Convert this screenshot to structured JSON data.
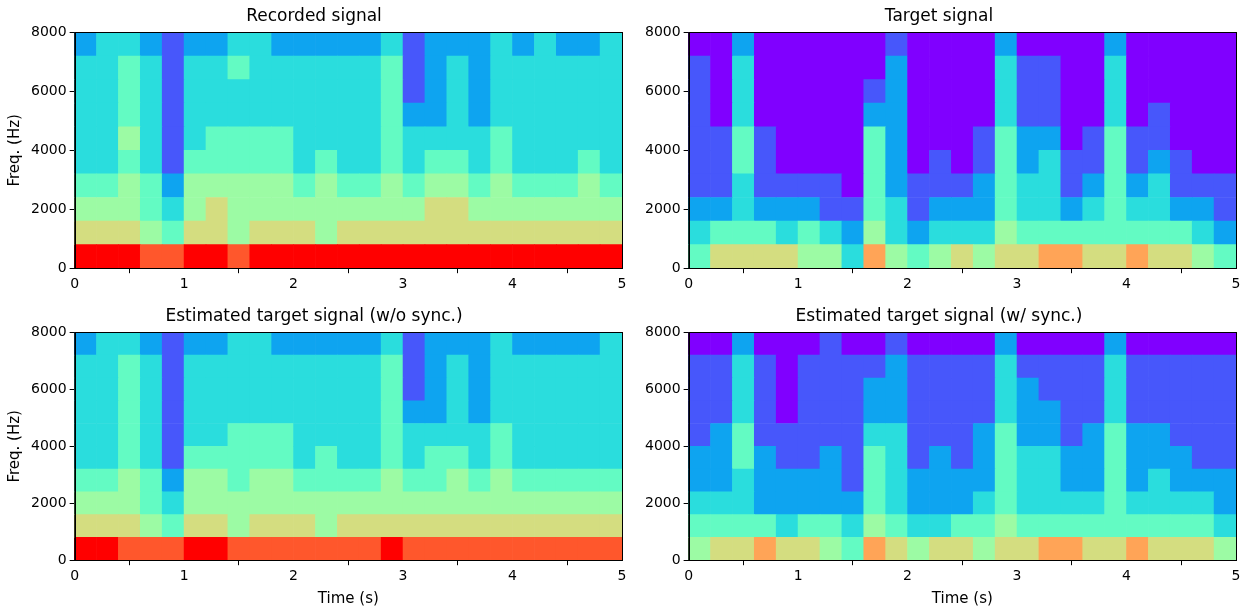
{
  "chart_data": [
    {
      "type": "heatmap",
      "title": "Recorded signal",
      "y_label": "Freq. (Hz)",
      "xlim": [
        0,
        5
      ],
      "xticks": [
        0,
        1,
        2,
        3,
        4,
        5
      ],
      "ylim": [
        0,
        8000
      ],
      "yticks": [
        0,
        2000,
        4000,
        6000,
        8000
      ],
      "grid": false,
      "color": "rainbow",
      "clim": [
        0,
        9
      ],
      "time_bins": [
        0,
        0.2,
        0.4,
        0.6,
        0.8,
        1.0,
        1.2,
        1.4,
        1.6,
        1.8,
        2.0,
        2.2,
        2.4,
        2.6,
        2.8,
        3.0,
        3.2,
        3.4,
        3.6,
        3.8,
        4.0,
        4.2,
        4.4,
        4.6,
        4.8,
        5.0
      ],
      "freq_bins": [
        0,
        800,
        1600,
        2400,
        3200,
        4000,
        4800,
        5600,
        6400,
        7200,
        8000
      ],
      "cells": [
        [
          9,
          9,
          9,
          8,
          8,
          9,
          9,
          8,
          9,
          9,
          9,
          9,
          9,
          9,
          9,
          9,
          9,
          9,
          9,
          9,
          9,
          9,
          9,
          9,
          9
        ],
        [
          6,
          6,
          6,
          5,
          4,
          6,
          6,
          5,
          6,
          6,
          6,
          5,
          6,
          6,
          6,
          6,
          6,
          6,
          6,
          6,
          6,
          6,
          6,
          6,
          6
        ],
        [
          5,
          5,
          5,
          4,
          3,
          5,
          6,
          5,
          5,
          5,
          5,
          5,
          5,
          5,
          5,
          5,
          6,
          6,
          5,
          5,
          5,
          5,
          5,
          5,
          5
        ],
        [
          4,
          4,
          5,
          4,
          2,
          5,
          5,
          5,
          5,
          5,
          4,
          5,
          4,
          4,
          5,
          4,
          5,
          5,
          4,
          5,
          4,
          4,
          4,
          5,
          4
        ],
        [
          3,
          3,
          4,
          3,
          1,
          4,
          4,
          4,
          4,
          4,
          3,
          4,
          3,
          3,
          4,
          3,
          4,
          4,
          3,
          4,
          3,
          3,
          3,
          4,
          3
        ],
        [
          3,
          3,
          5,
          3,
          1,
          3,
          4,
          4,
          4,
          4,
          3,
          3,
          3,
          3,
          4,
          3,
          3,
          3,
          3,
          4,
          3,
          3,
          3,
          3,
          3
        ],
        [
          3,
          3,
          4,
          3,
          1,
          3,
          3,
          3,
          3,
          3,
          3,
          3,
          3,
          3,
          4,
          2,
          2,
          3,
          2,
          3,
          3,
          3,
          3,
          3,
          3
        ],
        [
          3,
          3,
          4,
          3,
          1,
          3,
          3,
          3,
          3,
          3,
          3,
          3,
          3,
          3,
          4,
          1,
          2,
          3,
          2,
          3,
          3,
          3,
          3,
          3,
          3
        ],
        [
          3,
          3,
          4,
          3,
          1,
          3,
          3,
          4,
          3,
          3,
          3,
          3,
          3,
          3,
          4,
          1,
          2,
          3,
          2,
          3,
          3,
          3,
          3,
          3,
          3
        ],
        [
          2,
          3,
          3,
          2,
          1,
          2,
          2,
          3,
          3,
          2,
          2,
          2,
          2,
          2,
          3,
          1,
          2,
          2,
          2,
          3,
          2,
          3,
          2,
          2,
          3
        ]
      ]
    },
    {
      "type": "heatmap",
      "title": "Target signal",
      "xlim": [
        0,
        5
      ],
      "xticks": [
        0,
        1,
        2,
        3,
        4,
        5
      ],
      "ylim": [
        0,
        8000
      ],
      "yticks": [
        0,
        2000,
        4000,
        6000,
        8000
      ],
      "grid": false,
      "color": "rainbow",
      "clim": [
        0,
        9
      ],
      "time_bins": [
        0,
        0.2,
        0.4,
        0.6,
        0.8,
        1.0,
        1.2,
        1.4,
        1.6,
        1.8,
        2.0,
        2.2,
        2.4,
        2.6,
        2.8,
        3.0,
        3.2,
        3.4,
        3.6,
        3.8,
        4.0,
        4.2,
        4.4,
        4.6,
        4.8,
        5.0
      ],
      "freq_bins": [
        0,
        800,
        1600,
        2400,
        3200,
        4000,
        4800,
        5600,
        6400,
        7200,
        8000
      ],
      "cells": [
        [
          4,
          6,
          6,
          6,
          6,
          5,
          5,
          3,
          7,
          5,
          4,
          5,
          6,
          5,
          6,
          6,
          7,
          7,
          6,
          6,
          7,
          6,
          6,
          5,
          4
        ],
        [
          3,
          4,
          4,
          4,
          3,
          4,
          3,
          2,
          5,
          3,
          2,
          3,
          3,
          3,
          5,
          4,
          4,
          4,
          4,
          4,
          4,
          4,
          4,
          3,
          2
        ],
        [
          2,
          2,
          3,
          2,
          2,
          2,
          1,
          1,
          4,
          3,
          1,
          2,
          2,
          2,
          4,
          3,
          3,
          2,
          3,
          4,
          3,
          3,
          2,
          2,
          1
        ],
        [
          1,
          1,
          3,
          1,
          1,
          1,
          1,
          0,
          4,
          2,
          1,
          1,
          1,
          2,
          4,
          3,
          3,
          1,
          2,
          4,
          2,
          3,
          1,
          1,
          1
        ],
        [
          1,
          1,
          4,
          1,
          0,
          0,
          0,
          0,
          4,
          2,
          0,
          1,
          0,
          1,
          4,
          2,
          3,
          1,
          1,
          4,
          1,
          2,
          1,
          0,
          0
        ],
        [
          1,
          1,
          4,
          1,
          0,
          0,
          0,
          0,
          4,
          2,
          0,
          0,
          0,
          1,
          4,
          2,
          2,
          0,
          1,
          4,
          1,
          1,
          0,
          0,
          0
        ],
        [
          1,
          0,
          3,
          0,
          0,
          0,
          0,
          0,
          2,
          2,
          0,
          0,
          0,
          0,
          3,
          1,
          1,
          0,
          0,
          3,
          0,
          1,
          0,
          0,
          0
        ],
        [
          1,
          0,
          3,
          0,
          0,
          0,
          0,
          0,
          1,
          2,
          0,
          0,
          0,
          0,
          3,
          1,
          1,
          0,
          0,
          3,
          0,
          0,
          0,
          0,
          0
        ],
        [
          1,
          0,
          3,
          0,
          0,
          0,
          0,
          0,
          0,
          2,
          0,
          0,
          0,
          0,
          3,
          1,
          1,
          0,
          0,
          3,
          0,
          0,
          0,
          0,
          0
        ],
        [
          0,
          0,
          2,
          0,
          0,
          0,
          0,
          0,
          0,
          1,
          0,
          0,
          0,
          0,
          2,
          0,
          0,
          0,
          0,
          2,
          0,
          0,
          0,
          0,
          0
        ]
      ]
    },
    {
      "type": "heatmap",
      "title": "Estimated target signal (w/o sync.)",
      "x_label": "Time (s)",
      "y_label": "Freq. (Hz)",
      "xlim": [
        0,
        5
      ],
      "xticks": [
        0,
        1,
        2,
        3,
        4,
        5
      ],
      "ylim": [
        0,
        8000
      ],
      "yticks": [
        0,
        2000,
        4000,
        6000,
        8000
      ],
      "grid": false,
      "color": "rainbow",
      "clim": [
        0,
        9
      ],
      "time_bins": [
        0,
        0.2,
        0.4,
        0.6,
        0.8,
        1.0,
        1.2,
        1.4,
        1.6,
        1.8,
        2.0,
        2.2,
        2.4,
        2.6,
        2.8,
        3.0,
        3.2,
        3.4,
        3.6,
        3.8,
        4.0,
        4.2,
        4.4,
        4.6,
        4.8,
        5.0
      ],
      "freq_bins": [
        0,
        800,
        1600,
        2400,
        3200,
        4000,
        4800,
        5600,
        6400,
        7200,
        8000
      ],
      "cells": [
        [
          9,
          9,
          8,
          8,
          8,
          9,
          9,
          8,
          8,
          8,
          8,
          8,
          8,
          8,
          9,
          8,
          8,
          8,
          8,
          8,
          8,
          8,
          8,
          8,
          8
        ],
        [
          6,
          6,
          6,
          5,
          4,
          6,
          6,
          5,
          6,
          6,
          6,
          5,
          6,
          6,
          6,
          6,
          6,
          6,
          6,
          6,
          6,
          6,
          6,
          6,
          6
        ],
        [
          5,
          5,
          5,
          4,
          3,
          5,
          5,
          5,
          5,
          5,
          5,
          5,
          5,
          5,
          5,
          5,
          5,
          5,
          5,
          5,
          5,
          5,
          5,
          5,
          5
        ],
        [
          4,
          4,
          5,
          4,
          2,
          5,
          5,
          4,
          5,
          5,
          4,
          4,
          4,
          4,
          5,
          4,
          4,
          5,
          4,
          5,
          4,
          4,
          4,
          4,
          4
        ],
        [
          3,
          3,
          4,
          3,
          1,
          4,
          4,
          4,
          4,
          4,
          3,
          4,
          3,
          3,
          4,
          3,
          4,
          4,
          3,
          4,
          3,
          3,
          3,
          3,
          3
        ],
        [
          3,
          3,
          4,
          3,
          1,
          3,
          3,
          4,
          4,
          4,
          3,
          3,
          3,
          3,
          4,
          3,
          3,
          3,
          3,
          4,
          3,
          3,
          3,
          3,
          3
        ],
        [
          3,
          3,
          4,
          3,
          1,
          3,
          3,
          3,
          3,
          3,
          3,
          3,
          3,
          3,
          4,
          2,
          2,
          3,
          2,
          3,
          3,
          3,
          3,
          3,
          3
        ],
        [
          3,
          3,
          4,
          3,
          1,
          3,
          3,
          3,
          3,
          3,
          3,
          3,
          3,
          3,
          4,
          1,
          2,
          3,
          2,
          3,
          3,
          3,
          3,
          3,
          3
        ],
        [
          3,
          3,
          4,
          3,
          1,
          3,
          3,
          3,
          3,
          3,
          3,
          3,
          3,
          3,
          4,
          1,
          2,
          3,
          2,
          3,
          3,
          3,
          3,
          3,
          3
        ],
        [
          2,
          3,
          3,
          2,
          1,
          2,
          2,
          3,
          3,
          2,
          2,
          2,
          2,
          2,
          3,
          1,
          2,
          2,
          2,
          3,
          2,
          2,
          2,
          2,
          3
        ]
      ]
    },
    {
      "type": "heatmap",
      "title": "Estimated target signal (w/ sync.)",
      "x_label": "Time (s)",
      "xlim": [
        0,
        5
      ],
      "xticks": [
        0,
        1,
        2,
        3,
        4,
        5
      ],
      "ylim": [
        0,
        8000
      ],
      "yticks": [
        0,
        2000,
        4000,
        6000,
        8000
      ],
      "grid": false,
      "color": "rainbow",
      "clim": [
        0,
        9
      ],
      "time_bins": [
        0,
        0.2,
        0.4,
        0.6,
        0.8,
        1.0,
        1.2,
        1.4,
        1.6,
        1.8,
        2.0,
        2.2,
        2.4,
        2.6,
        2.8,
        3.0,
        3.2,
        3.4,
        3.6,
        3.8,
        4.0,
        4.2,
        4.4,
        4.6,
        4.8,
        5.0
      ],
      "freq_bins": [
        0,
        800,
        1600,
        2400,
        3200,
        4000,
        4800,
        5600,
        6400,
        7200,
        8000
      ],
      "cells": [
        [
          5,
          6,
          6,
          7,
          6,
          6,
          5,
          4,
          7,
          6,
          5,
          6,
          6,
          5,
          6,
          6,
          7,
          7,
          6,
          6,
          7,
          6,
          6,
          6,
          5
        ],
        [
          4,
          4,
          4,
          4,
          3,
          4,
          4,
          3,
          5,
          4,
          3,
          3,
          4,
          4,
          5,
          4,
          4,
          4,
          4,
          4,
          4,
          4,
          4,
          4,
          3
        ],
        [
          3,
          3,
          3,
          2,
          2,
          2,
          2,
          2,
          4,
          3,
          2,
          2,
          2,
          3,
          4,
          3,
          3,
          3,
          3,
          4,
          3,
          3,
          3,
          3,
          2
        ],
        [
          2,
          2,
          3,
          2,
          2,
          2,
          2,
          1,
          4,
          3,
          2,
          2,
          2,
          2,
          4,
          3,
          3,
          2,
          2,
          4,
          2,
          3,
          2,
          2,
          2
        ],
        [
          2,
          2,
          4,
          2,
          1,
          1,
          2,
          1,
          4,
          3,
          1,
          2,
          1,
          2,
          4,
          3,
          3,
          2,
          2,
          4,
          2,
          2,
          2,
          1,
          1
        ],
        [
          1,
          2,
          4,
          1,
          1,
          1,
          1,
          1,
          3,
          3,
          1,
          1,
          1,
          2,
          4,
          2,
          2,
          1,
          2,
          4,
          2,
          2,
          1,
          1,
          1
        ],
        [
          1,
          1,
          3,
          1,
          0,
          1,
          1,
          1,
          2,
          2,
          1,
          1,
          1,
          1,
          3,
          2,
          2,
          1,
          1,
          3,
          1,
          1,
          1,
          1,
          1
        ],
        [
          1,
          1,
          3,
          1,
          0,
          1,
          1,
          1,
          2,
          2,
          1,
          1,
          1,
          1,
          3,
          2,
          1,
          1,
          1,
          3,
          1,
          1,
          1,
          1,
          1
        ],
        [
          1,
          1,
          3,
          1,
          0,
          1,
          1,
          1,
          1,
          2,
          1,
          1,
          1,
          1,
          3,
          1,
          1,
          1,
          1,
          3,
          1,
          1,
          1,
          1,
          1
        ],
        [
          0,
          0,
          2,
          0,
          0,
          0,
          1,
          0,
          0,
          1,
          0,
          0,
          0,
          0,
          2,
          0,
          0,
          0,
          0,
          2,
          0,
          0,
          0,
          0,
          0
        ]
      ]
    }
  ]
}
